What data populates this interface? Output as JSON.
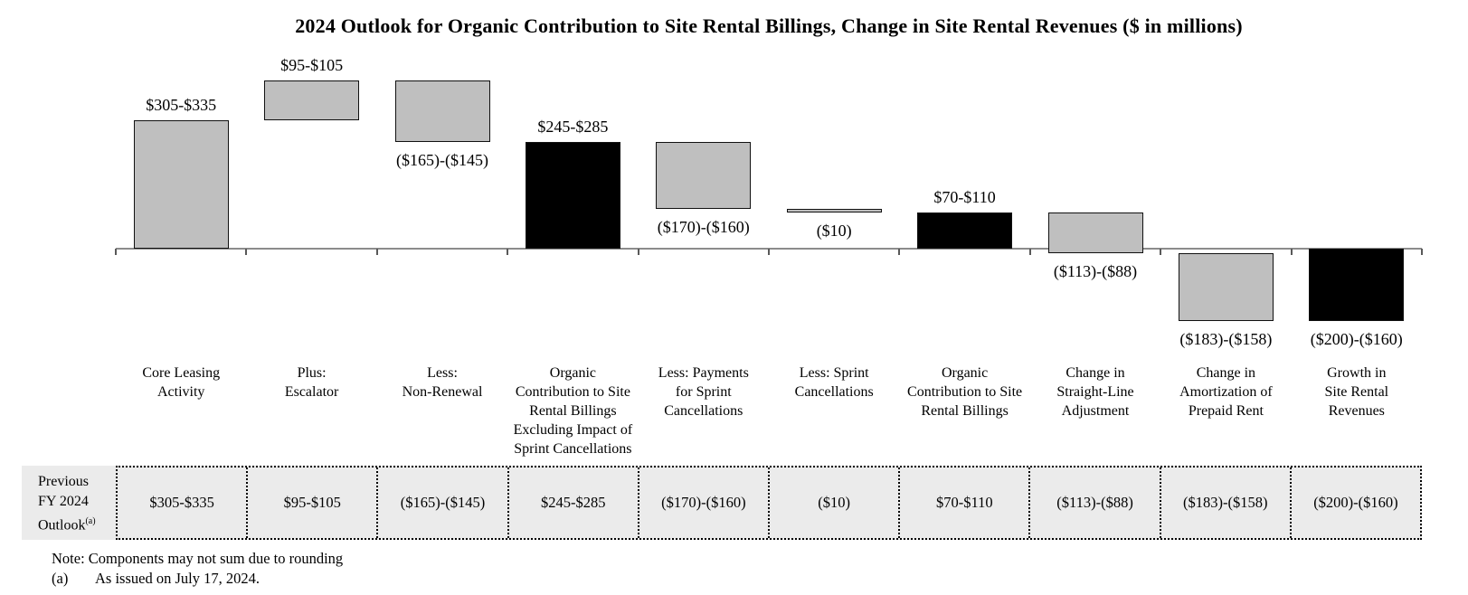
{
  "title": "2024 Outlook for Organic Contribution to Site Rental Billings, Change in Site Rental Revenues ($ in millions)",
  "chart_data": {
    "type": "bar",
    "subtype": "waterfall",
    "unit": "$ in millions",
    "baseline_value": 0,
    "grid": false,
    "colors": {
      "gray": "#bfbfbf",
      "black": "#000000"
    },
    "bars": [
      {
        "category_lines": [
          "Core Leasing",
          "Activity"
        ],
        "value_label": "$305-$335",
        "low": 305,
        "high": 335,
        "kind": "delta",
        "color": "gray",
        "label_position": "above"
      },
      {
        "category_lines": [
          "Plus:",
          "Escalator"
        ],
        "value_label": "$95-$105",
        "low": 95,
        "high": 105,
        "kind": "delta",
        "color": "gray",
        "label_position": "above"
      },
      {
        "category_lines": [
          "Less:",
          "Non-Renewal"
        ],
        "value_label": "($165)-($145)",
        "low": -165,
        "high": -145,
        "kind": "delta",
        "color": "gray",
        "label_position": "below"
      },
      {
        "category_lines": [
          "Organic",
          "Contribution to Site",
          "Rental Billings",
          "Excluding Impact of",
          "Sprint Cancellations"
        ],
        "value_label": "$245-$285",
        "low": 245,
        "high": 285,
        "kind": "total",
        "color": "black",
        "label_position": "above"
      },
      {
        "category_lines": [
          "Less: Payments",
          "for Sprint",
          "Cancellations"
        ],
        "value_label": "($170)-($160)",
        "low": -170,
        "high": -160,
        "kind": "delta",
        "color": "gray",
        "label_position": "below"
      },
      {
        "category_lines": [
          "Less: Sprint",
          "Cancellations"
        ],
        "value_label": "($10)",
        "low": -10,
        "high": -10,
        "kind": "delta",
        "color": "gray",
        "label_position": "below"
      },
      {
        "category_lines": [
          "Organic",
          "Contribution to Site",
          "Rental Billings"
        ],
        "value_label": "$70-$110",
        "low": 70,
        "high": 110,
        "kind": "total",
        "color": "black",
        "label_position": "above"
      },
      {
        "category_lines": [
          "Change in",
          "Straight-Line",
          "Adjustment"
        ],
        "value_label": "($113)-($88)",
        "low": -113,
        "high": -88,
        "kind": "delta",
        "color": "gray",
        "label_position": "below"
      },
      {
        "category_lines": [
          "Change in",
          "Amortization of",
          "Prepaid Rent"
        ],
        "value_label": "($183)-($158)",
        "low": -183,
        "high": -158,
        "kind": "delta",
        "color": "gray",
        "label_position": "below"
      },
      {
        "category_lines": [
          "Growth in",
          "Site Rental",
          "Revenues"
        ],
        "value_label": "($200)-($160)",
        "low": -200,
        "high": -160,
        "kind": "total",
        "color": "black",
        "label_position": "below"
      }
    ]
  },
  "table": {
    "row_header_lines": [
      "Previous",
      "FY 2024",
      "Outlook"
    ],
    "row_header_superscript": "(a)",
    "values": [
      "$305-$335",
      "$95-$105",
      "($165)-($145)",
      "$245-$285",
      "($170)-($160)",
      "($10)",
      "$70-$110",
      "($113)-($88)",
      "($183)-($158)",
      "($200)-($160)"
    ]
  },
  "notes": {
    "note": "Note: Components may not sum due to rounding",
    "footnote_marker": "(a)",
    "footnote_text": "As issued on July 17, 2024."
  }
}
